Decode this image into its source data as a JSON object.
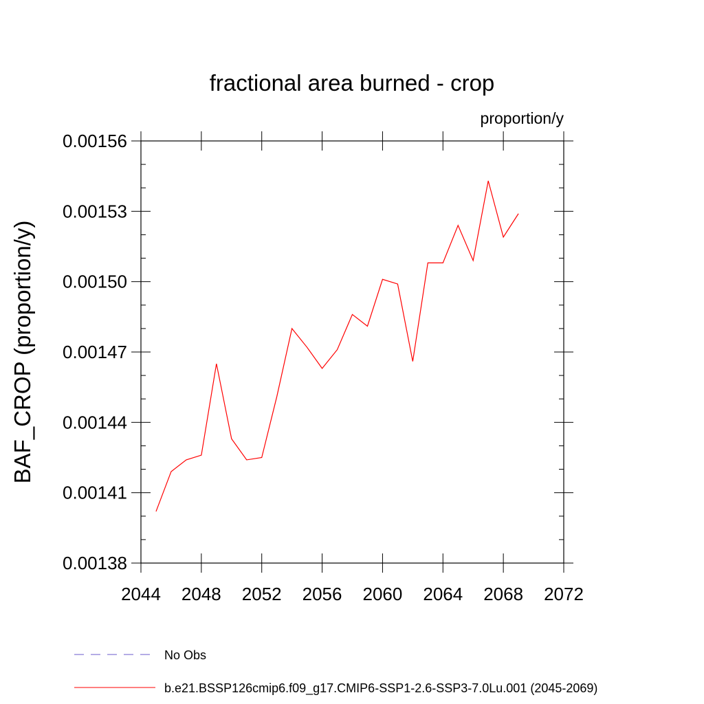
{
  "chart_data": {
    "type": "line",
    "title": "fractional area burned - crop",
    "units_label": "proportion/y",
    "ylabel": "BAF_CROP  (proportion/y)",
    "xlabel": "",
    "xlim": [
      2044,
      2072
    ],
    "ylim": [
      0.00138,
      0.00156
    ],
    "x_ticks": [
      2044,
      2048,
      2052,
      2056,
      2060,
      2064,
      2068,
      2072
    ],
    "x_tick_labels": [
      "2044",
      "2048",
      "2052",
      "2056",
      "2060",
      "2064",
      "2068",
      "2072"
    ],
    "y_ticks": [
      0.00138,
      0.00141,
      0.00144,
      0.00147,
      0.0015,
      0.00153,
      0.00156
    ],
    "y_tick_labels": [
      "0.00138",
      "0.00141",
      "0.00144",
      "0.00147",
      "0.00150",
      "0.00153",
      "0.00156"
    ],
    "grid": false,
    "legend_position": "bottom",
    "series": [
      {
        "name": "No Obs",
        "color": "#6a5acd",
        "dash": "dashed",
        "x": [],
        "y": []
      },
      {
        "name": "b.e21.BSSP126cmip6.f09_g17.CMIP6-SSP1-2.6-SSP3-7.0Lu.001 (2045-2069)",
        "color": "#ff0000",
        "dash": "solid",
        "x": [
          2045,
          2046,
          2047,
          2048,
          2049,
          2050,
          2051,
          2052,
          2053,
          2054,
          2055,
          2056,
          2057,
          2058,
          2059,
          2060,
          2061,
          2062,
          2063,
          2064,
          2065,
          2066,
          2067,
          2068,
          2069
        ],
        "y": [
          0.001402,
          0.001419,
          0.001424,
          0.001426,
          0.001465,
          0.001433,
          0.001424,
          0.001425,
          0.001451,
          0.00148,
          0.001472,
          0.001463,
          0.001471,
          0.001486,
          0.001481,
          0.001501,
          0.001499,
          0.001466,
          0.001508,
          0.001508,
          0.001524,
          0.001509,
          0.001543,
          0.001519,
          0.001529
        ]
      }
    ]
  }
}
